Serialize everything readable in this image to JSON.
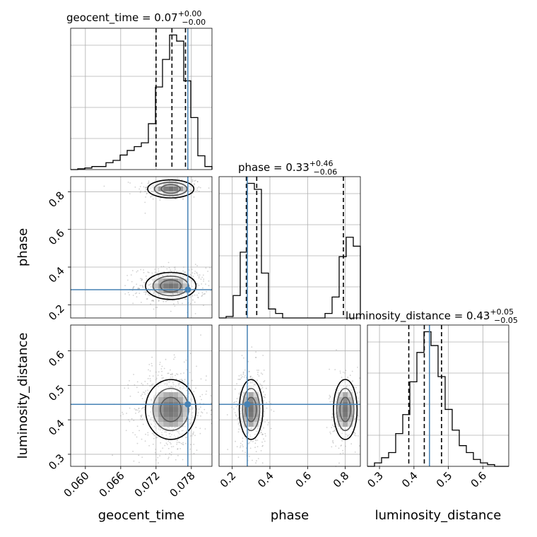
{
  "chart_data": {
    "type": "corner",
    "parameters": [
      "geocent_time",
      "phase",
      "luminosity_distance"
    ],
    "truths": {
      "geocent_time": 0.0774,
      "phase": 0.28,
      "luminosity_distance": 0.445
    },
    "colors": {
      "truth": "#4682b4",
      "contour": "#000000",
      "grid": "#b0b0b0",
      "points": "#9a9a9a"
    },
    "axes": {
      "geocent_time": {
        "range": [
          0.0575,
          0.0815
        ],
        "ticks": [
          0.06,
          0.066,
          0.072,
          0.078
        ],
        "tick_labels": [
          "0.060",
          "0.066",
          "0.072",
          "0.078"
        ]
      },
      "phase": {
        "range": [
          0.13,
          0.88
        ],
        "ticks": [
          0.2,
          0.4,
          0.6,
          0.8
        ],
        "tick_labels": [
          "0.2",
          "0.4",
          "0.6",
          "0.8"
        ]
      },
      "luminosity_distance": {
        "range": [
          0.265,
          0.675
        ],
        "ticks": [
          0.3,
          0.4,
          0.5,
          0.6
        ],
        "tick_labels": [
          "0.3",
          "0.4",
          "0.5",
          "0.6"
        ]
      }
    },
    "titles": [
      {
        "param": "geocent_time",
        "main": "geocent_time = 0.07",
        "sup": "+0.00",
        "sub": "−0.00"
      },
      {
        "param": "phase",
        "main": "phase = 0.33",
        "sup": "+0.46",
        "sub": "−0.06"
      },
      {
        "param": "luminosity_distance",
        "main": "luminosity_distance = 0.43",
        "sup": "+0.05",
        "sub": "−0.05"
      }
    ],
    "quantiles": {
      "geocent_time": [
        0.072,
        0.0747,
        0.077
      ],
      "phase": [
        0.275,
        0.33,
        0.79
      ],
      "luminosity_distance": [
        0.385,
        0.43,
        0.48
      ]
    },
    "histograms": {
      "geocent_time": {
        "edges": [
          0.0575,
          0.0587,
          0.0599,
          0.0611,
          0.0623,
          0.0635,
          0.0647,
          0.0659,
          0.0671,
          0.0683,
          0.0695,
          0.0707,
          0.0719,
          0.0731,
          0.0743,
          0.0755,
          0.0767,
          0.0779,
          0.0791,
          0.0803,
          0.0815
        ],
        "counts": [
          0.0,
          0.005,
          0.01,
          0.02,
          0.02,
          0.045,
          0.06,
          0.095,
          0.125,
          0.15,
          0.175,
          0.3,
          0.54,
          0.72,
          0.88,
          0.84,
          0.58,
          0.34,
          0.09,
          0.02
        ]
      },
      "phase": {
        "edges": [
          0.13,
          0.1675,
          0.205,
          0.2425,
          0.28,
          0.3175,
          0.355,
          0.3925,
          0.43,
          0.4675,
          0.505,
          0.5425,
          0.58,
          0.6175,
          0.655,
          0.6925,
          0.73,
          0.7675,
          0.805,
          0.8425,
          0.88
        ],
        "counts": [
          0.0,
          0.01,
          0.15,
          0.44,
          0.9,
          0.86,
          0.3,
          0.06,
          0.03,
          0.0,
          0.0,
          0.0,
          0.0,
          0.0,
          0.0,
          0.03,
          0.14,
          0.41,
          0.54,
          0.48
        ]
      },
      "luminosity_distance": {
        "edges": [
          0.265,
          0.2855,
          0.306,
          0.3265,
          0.347,
          0.3675,
          0.388,
          0.4085,
          0.429,
          0.4495,
          0.47,
          0.4905,
          0.511,
          0.5315,
          0.552,
          0.5725,
          0.593,
          0.6135,
          0.634,
          0.6545,
          0.675
        ],
        "counts": [
          0.0,
          0.02,
          0.05,
          0.08,
          0.19,
          0.3,
          0.49,
          0.66,
          0.78,
          0.7,
          0.52,
          0.33,
          0.21,
          0.12,
          0.08,
          0.04,
          0.02,
          0.01,
          0.0,
          0.0
        ]
      }
    },
    "pairs": [
      {
        "x": "geocent_time",
        "y": "phase",
        "modes": [
          {
            "center": [
              0.0745,
              0.815
            ],
            "sigma": [
              0.002,
              0.022
            ],
            "weight": 0.35
          },
          {
            "center": [
              0.0745,
              0.3
            ],
            "sigma": [
              0.0022,
              0.035
            ],
            "weight": 0.65
          }
        ]
      },
      {
        "x": "geocent_time",
        "y": "luminosity_distance",
        "modes": [
          {
            "center": [
              0.0745,
              0.43
            ],
            "sigma": [
              0.0022,
              0.045
            ],
            "weight": 1.0
          }
        ]
      },
      {
        "x": "phase",
        "y": "luminosity_distance",
        "modes": [
          {
            "center": [
              0.3,
              0.43
            ],
            "sigma": [
              0.03,
              0.045
            ],
            "weight": 0.62
          },
          {
            "center": [
              0.8,
              0.43
            ],
            "sigma": [
              0.03,
              0.045
            ],
            "weight": 0.38
          }
        ]
      }
    ]
  }
}
